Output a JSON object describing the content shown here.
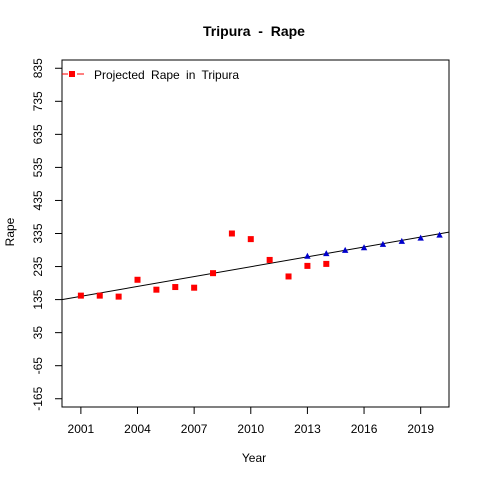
{
  "chart_data": {
    "type": "scatter",
    "title": "Tripura  -  Rape",
    "xlabel": "Year",
    "ylabel": "Rape",
    "xlim": [
      2000.0,
      2020.5
    ],
    "ylim": [
      -190,
      860
    ],
    "x_ticks": [
      2001,
      2004,
      2007,
      2010,
      2013,
      2016,
      2019
    ],
    "y_ticks": [
      -165,
      -65,
      35,
      135,
      235,
      335,
      435,
      535,
      635,
      735,
      835
    ],
    "legend": {
      "label": "Projected Rape in Tripura",
      "position": "top-left"
    },
    "series": [
      {
        "name": "Projected Rape in Tripura",
        "marker": "square",
        "color": "#ff0000",
        "points": [
          [
            2001,
            147
          ],
          [
            2002,
            147
          ],
          [
            2003,
            144
          ],
          [
            2004,
            195
          ],
          [
            2005,
            165
          ],
          [
            2006,
            173
          ],
          [
            2007,
            171
          ],
          [
            2008,
            215
          ],
          [
            2009,
            335
          ],
          [
            2010,
            318
          ],
          [
            2011,
            255
          ],
          [
            2012,
            205
          ],
          [
            2013,
            237
          ],
          [
            2014,
            243
          ]
        ]
      },
      {
        "marker": "triangle",
        "color": "#0000cc",
        "points": [
          [
            2013,
            266
          ],
          [
            2014,
            274
          ],
          [
            2015,
            284
          ],
          [
            2016,
            292
          ],
          [
            2017,
            302
          ],
          [
            2018,
            311
          ],
          [
            2019,
            321
          ],
          [
            2020,
            330
          ]
        ]
      }
    ],
    "trend_line": {
      "x": [
        2000.0,
        2020.5
      ],
      "y": [
        135,
        339
      ],
      "color": "#000000"
    }
  }
}
